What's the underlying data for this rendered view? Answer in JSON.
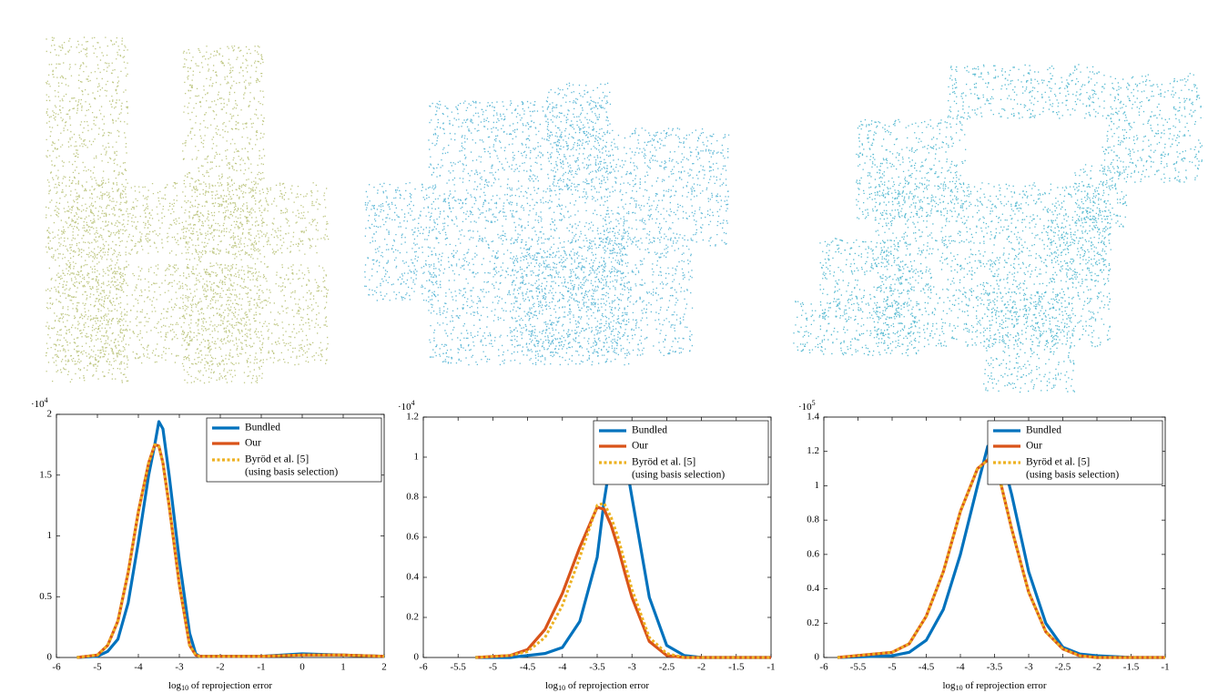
{
  "chart_data": [
    {
      "type": "line",
      "y_multiplier_base": "·10",
      "y_multiplier_exp": "4",
      "xlabel_parts": [
        "log",
        "10",
        " of reprojection error"
      ],
      "xlim": [
        -6,
        2
      ],
      "xticks": [
        -6,
        -5,
        -4,
        -3,
        -2,
        -1,
        0,
        1,
        2
      ],
      "ylim": [
        0,
        2
      ],
      "yticks": [
        0,
        0.5,
        1,
        1.5,
        2
      ],
      "x": [
        -5.5,
        -5,
        -4.75,
        -4.5,
        -4.25,
        -4,
        -3.75,
        -3.6,
        -3.5,
        -3.4,
        -3.25,
        -3,
        -2.75,
        -2.6,
        -2.5,
        -2,
        -1,
        0,
        1,
        2
      ],
      "legend_note": "(using basis selection)",
      "series": [
        {
          "name": "Bundled",
          "color": "#0072bd",
          "dashed": false,
          "values": [
            0,
            0.01,
            0.05,
            0.15,
            0.45,
            0.95,
            1.5,
            1.75,
            1.94,
            1.88,
            1.5,
            0.8,
            0.2,
            0.03,
            0.01,
            0.01,
            0.01,
            0.03,
            0.02,
            0.01
          ]
        },
        {
          "name": "Our",
          "color": "#d95319",
          "dashed": false,
          "values": [
            0,
            0.02,
            0.1,
            0.3,
            0.7,
            1.2,
            1.6,
            1.75,
            1.74,
            1.6,
            1.25,
            0.6,
            0.1,
            0.02,
            0.01,
            0.01,
            0.01,
            0.02,
            0.02,
            0.01
          ]
        },
        {
          "name": "Byröd et al. [5]",
          "color": "#edb120",
          "dashed": true,
          "values": [
            0,
            0.02,
            0.1,
            0.3,
            0.7,
            1.2,
            1.6,
            1.75,
            1.74,
            1.6,
            1.25,
            0.6,
            0.1,
            0.02,
            0.01,
            0.01,
            0.01,
            0.02,
            0.02,
            0.01
          ]
        }
      ]
    },
    {
      "type": "line",
      "y_multiplier_base": "·10",
      "y_multiplier_exp": "4",
      "xlabel_parts": [
        "log",
        "10",
        " of reprojection error"
      ],
      "xlim": [
        -6,
        -1
      ],
      "xticks": [
        -6,
        -5.5,
        -5,
        -4.5,
        -4,
        -3.5,
        -3,
        -2.5,
        -2,
        -1.5,
        -1
      ],
      "ylim": [
        0,
        1.2
      ],
      "yticks": [
        0,
        0.2,
        0.4,
        0.6,
        0.8,
        1,
        1.2
      ],
      "x": [
        -5.25,
        -4.75,
        -4.5,
        -4.25,
        -4,
        -3.75,
        -3.5,
        -3.4,
        -3.3,
        -3.2,
        -3.1,
        -3,
        -2.75,
        -2.5,
        -2.25,
        -2,
        -1.5,
        -1
      ],
      "legend_note": "(using basis selection)",
      "series": [
        {
          "name": "Bundled",
          "color": "#0072bd",
          "dashed": false,
          "values": [
            0,
            0,
            0.01,
            0.02,
            0.05,
            0.18,
            0.5,
            0.78,
            1.0,
            1.13,
            1.0,
            0.8,
            0.3,
            0.06,
            0.01,
            0,
            0,
            0
          ]
        },
        {
          "name": "Our",
          "color": "#d95319",
          "dashed": false,
          "values": [
            0,
            0.01,
            0.04,
            0.14,
            0.32,
            0.55,
            0.75,
            0.74,
            0.66,
            0.55,
            0.42,
            0.3,
            0.08,
            0.01,
            0,
            0,
            0,
            0
          ]
        },
        {
          "name": "Byröd et al. [5]",
          "color": "#edb120",
          "dashed": true,
          "values": [
            0,
            0.01,
            0.03,
            0.1,
            0.26,
            0.5,
            0.76,
            0.77,
            0.7,
            0.6,
            0.47,
            0.34,
            0.1,
            0.02,
            0,
            0,
            0,
            0
          ]
        }
      ]
    },
    {
      "type": "line",
      "y_multiplier_base": "·10",
      "y_multiplier_exp": "5",
      "xlabel_parts": [
        "log",
        "10",
        " of reprojection error"
      ],
      "xlim": [
        -6,
        -1
      ],
      "xticks": [
        -6,
        -5.5,
        -5,
        -4.5,
        -4,
        -3.5,
        -3,
        -2.5,
        -2,
        -1.5,
        -1
      ],
      "ylim": [
        0,
        1.4
      ],
      "yticks": [
        0,
        0.2,
        0.4,
        0.6,
        0.8,
        1,
        1.2,
        1.4
      ],
      "x": [
        -5.8,
        -5,
        -4.75,
        -4.5,
        -4.25,
        -4,
        -3.75,
        -3.6,
        -3.5,
        -3.4,
        -3.25,
        -3,
        -2.75,
        -2.5,
        -2.25,
        -2,
        -1.5,
        -1
      ],
      "legend_note": "(using basis selection)",
      "series": [
        {
          "name": "Bundled",
          "color": "#0072bd",
          "dashed": false,
          "values": [
            0,
            0.01,
            0.03,
            0.1,
            0.28,
            0.6,
            1.0,
            1.23,
            1.26,
            1.18,
            0.95,
            0.5,
            0.2,
            0.06,
            0.02,
            0.01,
            0,
            0
          ]
        },
        {
          "name": "Our",
          "color": "#d95319",
          "dashed": false,
          "values": [
            0,
            0.03,
            0.08,
            0.24,
            0.5,
            0.85,
            1.1,
            1.15,
            1.12,
            1.0,
            0.75,
            0.38,
            0.15,
            0.05,
            0.01,
            0,
            0,
            0
          ]
        },
        {
          "name": "Byröd et al. [5]",
          "color": "#edb120",
          "dashed": true,
          "values": [
            0,
            0.03,
            0.08,
            0.24,
            0.5,
            0.85,
            1.1,
            1.15,
            1.12,
            1.0,
            0.75,
            0.38,
            0.15,
            0.05,
            0.01,
            0,
            0,
            0
          ]
        }
      ]
    }
  ]
}
